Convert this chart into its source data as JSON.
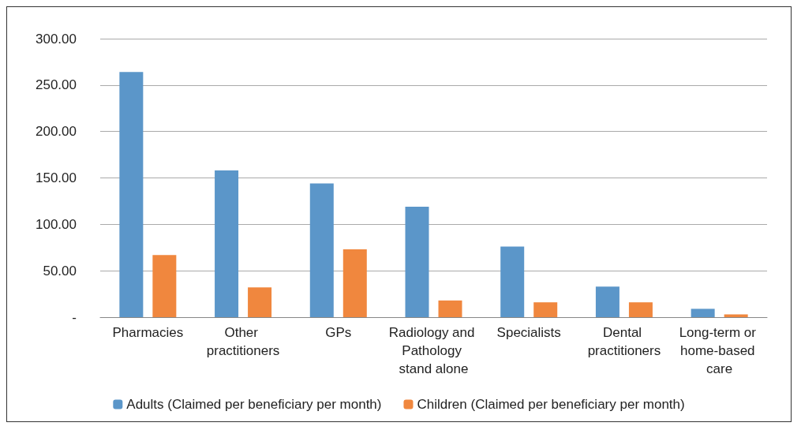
{
  "chart_data": {
    "type": "bar",
    "categories": [
      "Pharmacies",
      "Other practitioners",
      "GPs",
      "Radiology and Pathology stand alone",
      "Specialists",
      "Dental practitioners",
      "Long-term or home-based care"
    ],
    "series": [
      {
        "name": "Adults (Claimed per beneficiary per month)",
        "color": "#5b96c9",
        "values": [
          264,
          158,
          144,
          119,
          76,
          33,
          9
        ]
      },
      {
        "name": "Children (Claimed per beneficiary per month)",
        "color": "#f0873e",
        "values": [
          67,
          32,
          73,
          18,
          16,
          16,
          3
        ]
      }
    ],
    "ylim": [
      0,
      300
    ],
    "yticks": [
      {
        "value": 0,
        "label": "-"
      },
      {
        "value": 50,
        "label": "50.00"
      },
      {
        "value": 100,
        "label": "100.00"
      },
      {
        "value": 150,
        "label": "150.00"
      },
      {
        "value": 200,
        "label": "200.00"
      },
      {
        "value": 250,
        "label": "250.00"
      },
      {
        "value": 300,
        "label": "300.00"
      }
    ],
    "grid": "y",
    "legend": "bottom"
  }
}
